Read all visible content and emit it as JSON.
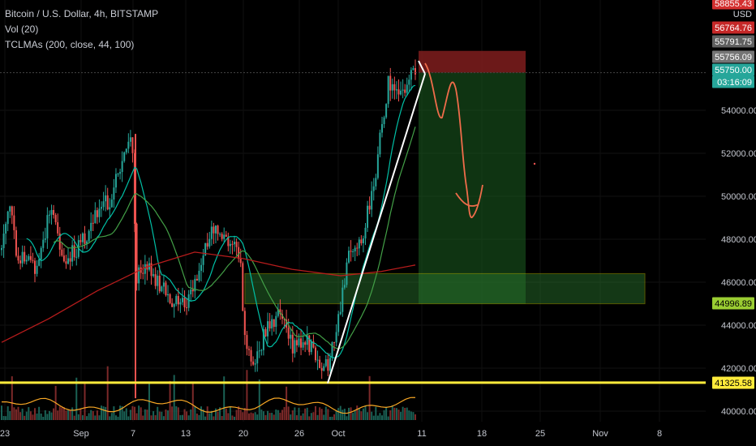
{
  "legend": {
    "title": "Bitcoin / U.S. Dollar, 4h, BITSTAMP",
    "indicator1": "Vol (20)",
    "indicator2": "TCLMAs (200, close, 44, 100)"
  },
  "price_tags": {
    "currency": "USD",
    "top_partial": "58855.43",
    "stop": "56764.76",
    "high": "55791.75",
    "open": "55756.09",
    "last": "55750.00",
    "countdown": "03:16:09",
    "zone_low": "44996.89",
    "support": "41325.58"
  },
  "colors": {
    "up": "#26a69a",
    "down": "#ef5350",
    "ma200": "#b71c1c",
    "ma44": "#00bfa5",
    "ma100": "#43a047",
    "support_line": "#ffeb3b",
    "zone_border": "#c0c000",
    "target_zone": "#1b5e20",
    "stop_zone": "#7f1d1d",
    "projection": "#ef6c4a",
    "trendline": "#ffffff",
    "volume_ma": "#f9a825"
  },
  "chart_data": {
    "type": "candlestick",
    "symbol": "Bitcoin / U.S. Dollar",
    "interval": "4h",
    "exchange": "BITSTAMP",
    "ylim": [
      39500,
      58900
    ],
    "y_ticks": [
      40000,
      42000,
      44000,
      46000,
      48000,
      50000,
      52000,
      54000
    ],
    "x_tick_labels": [
      "23",
      "Sep",
      "7",
      "13",
      "20",
      "26",
      "Oct",
      "11",
      "18",
      "25",
      "Nov",
      "8"
    ],
    "key_levels": {
      "last_price": 55750.0,
      "high": 55791.75,
      "stop": 56764.76,
      "demand_zone_top": 46400,
      "demand_zone_bottom": 44996.89,
      "support": 41325.58
    },
    "trend": [
      {
        "label": "23",
        "close": 47800
      },
      {
        "label": "Sep",
        "close": 48600
      },
      {
        "label": "7",
        "close": 52800
      },
      {
        "label": "13",
        "close": 45200
      },
      {
        "label": "20",
        "close": 46500
      },
      {
        "label": "26",
        "close": 42600
      },
      {
        "label": "Oct",
        "close": 44600
      },
      {
        "label": "11",
        "close": 55750
      }
    ]
  }
}
